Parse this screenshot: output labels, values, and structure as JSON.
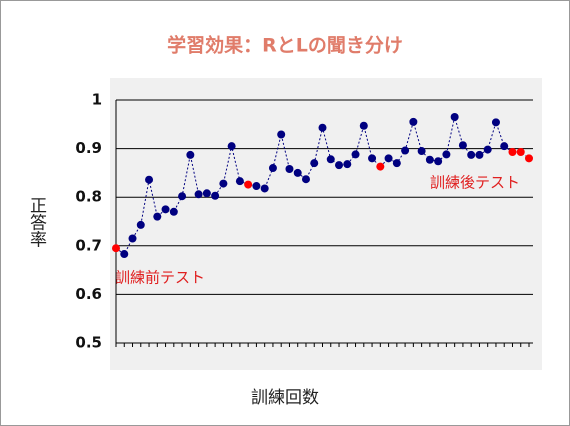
{
  "chart_data": {
    "type": "line",
    "title": "学習効果：RとLの聞き分け",
    "xlabel": "訓練回数",
    "ylabel": "正答率",
    "categories": [
      null,
      null,
      null,
      null,
      null,
      null,
      null,
      null,
      null,
      null,
      null,
      null,
      null,
      null,
      null,
      null,
      null,
      null,
      null,
      null,
      null,
      null,
      null,
      null,
      null,
      null,
      null,
      null,
      null,
      null,
      null,
      null,
      null,
      null,
      null,
      null,
      null,
      null,
      null,
      null,
      null,
      null,
      null,
      null,
      null,
      null,
      null,
      null,
      null,
      null,
      null
    ],
    "values": [
      0.695,
      0.683,
      0.715,
      0.743,
      0.836,
      0.76,
      0.775,
      0.77,
      0.802,
      0.887,
      0.806,
      0.808,
      0.803,
      0.828,
      0.905,
      0.833,
      0.826,
      0.823,
      0.818,
      0.86,
      0.929,
      0.858,
      0.85,
      0.837,
      0.87,
      0.943,
      0.878,
      0.866,
      0.868,
      0.888,
      0.947,
      0.88,
      0.863,
      0.88,
      0.87,
      0.896,
      0.955,
      0.895,
      0.877,
      0.874,
      0.888,
      0.965,
      0.907,
      0.887,
      0.887,
      0.898,
      0.954,
      0.905,
      0.893,
      0.893,
      0.88
    ],
    "line_color": "#000080",
    "point_colors": [
      "#ff0000",
      "#000080",
      "#000080",
      "#000080",
      "#000080",
      "#000080",
      "#000080",
      "#000080",
      "#000080",
      "#000080",
      "#000080",
      "#000080",
      "#000080",
      "#000080",
      "#000080",
      "#000080",
      "#ff0000",
      "#000080",
      "#000080",
      "#000080",
      "#000080",
      "#000080",
      "#000080",
      "#000080",
      "#000080",
      "#000080",
      "#000080",
      "#000080",
      "#000080",
      "#000080",
      "#000080",
      "#000080",
      "#ff0000",
      "#000080",
      "#000080",
      "#000080",
      "#000080",
      "#000080",
      "#000080",
      "#000080",
      "#000080",
      "#000080",
      "#000080",
      "#000080",
      "#000080",
      "#000080",
      "#000080",
      "#000080",
      "#ff0000",
      "#ff0000",
      "#ff0000"
    ],
    "ylim": [
      0.5,
      1
    ],
    "yticks": [
      0.5,
      0.6,
      0.7,
      0.8,
      0.9,
      1
    ],
    "grid": true,
    "annotations": [
      "訓練前テスト",
      "訓練後テスト"
    ]
  }
}
